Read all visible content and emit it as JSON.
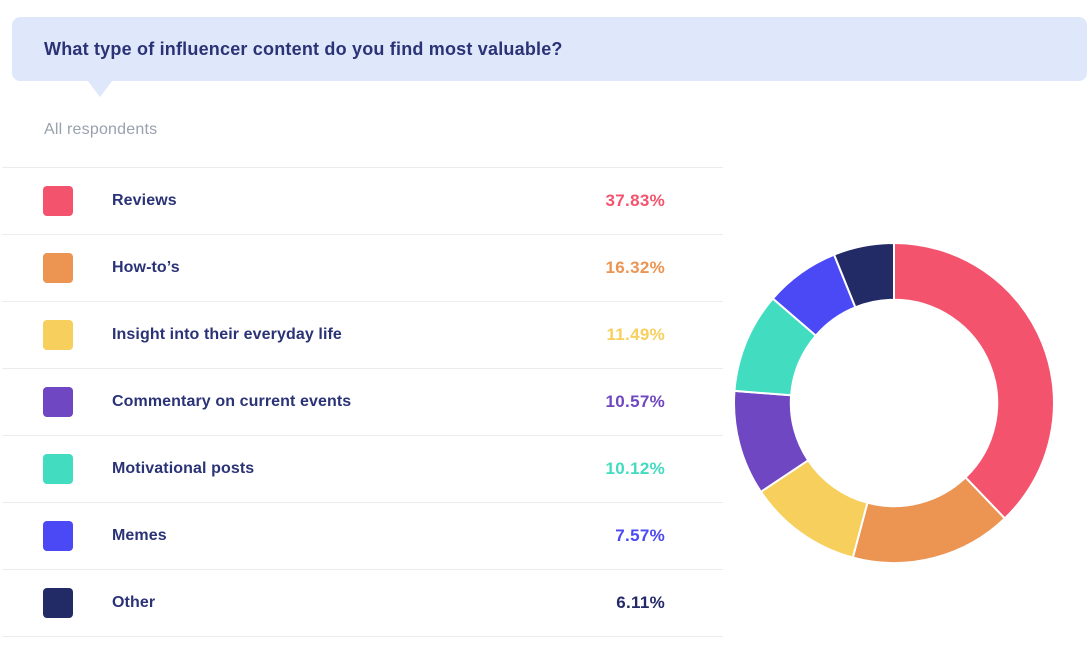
{
  "header": {
    "question": "What type of influencer content do you find most valuable?",
    "banner_bg": "#DFE8FA",
    "text_color": "#2B3377"
  },
  "filter": {
    "label": "All respondents",
    "text_color": "#99A1AE"
  },
  "table": {
    "label_color": "#2B3377",
    "divider_color": "#ECECEC"
  },
  "chart_data": {
    "type": "pie",
    "variant": "donut",
    "title": "What type of influencer content do you find most valuable?",
    "subtitle": "All respondents",
    "categories": [
      "Reviews",
      "How-to’s",
      "Insight into their everyday life",
      "Commentary on current events",
      "Motivational posts",
      "Memes",
      "Other"
    ],
    "values": [
      37.83,
      16.32,
      11.49,
      10.57,
      10.12,
      7.57,
      6.11
    ],
    "percent_labels": [
      "37.83%",
      "16.32%",
      "11.49%",
      "10.57%",
      "10.12%",
      "7.57%",
      "6.11%"
    ],
    "colors": [
      "#F4536E",
      "#EC9451",
      "#F6CF5D",
      "#6F47C2",
      "#42DCC1",
      "#4B48F6",
      "#232B66"
    ],
    "percent_label_colors": [
      "#F4536E",
      "#EC9451",
      "#F6CF5D",
      "#6F47C2",
      "#42DCC1",
      "#4B48F6",
      "#232B66"
    ],
    "legend_position": "left-table",
    "start_angle_deg": 0,
    "direction": "clockwise",
    "inner_radius_ratio": 0.645,
    "segment_gap_color": "#FFFFFF"
  }
}
